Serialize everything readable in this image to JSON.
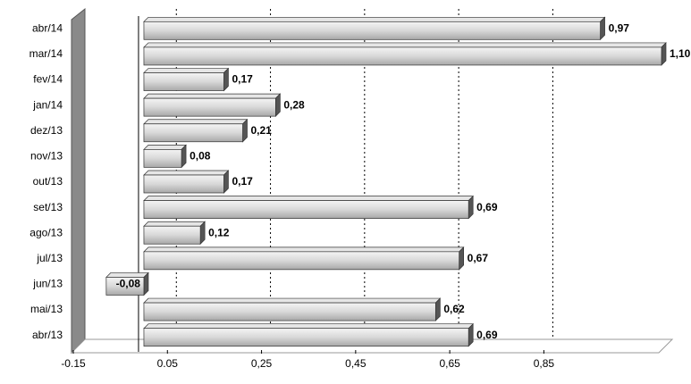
{
  "chart_data": {
    "type": "bar",
    "orientation": "horizontal",
    "categories": [
      "abr/14",
      "mar/14",
      "fev/14",
      "jan/14",
      "dez/13",
      "nov/13",
      "out/13",
      "set/13",
      "ago/13",
      "jul/13",
      "jun/13",
      "mai/13",
      "abr/13"
    ],
    "values": [
      0.97,
      1.1,
      0.17,
      0.28,
      0.21,
      0.08,
      0.17,
      0.69,
      0.12,
      0.67,
      -0.08,
      0.62,
      0.69
    ],
    "value_labels": [
      "0,97",
      "1,10",
      "0,17",
      "0,28",
      "0,21",
      "0,08",
      "0,17",
      "0,69",
      "0,12",
      "0,67",
      "-0,08",
      "0,62",
      "0,69"
    ],
    "color": "#c8c8c8",
    "xlim": [
      -0.15,
      1.1
    ],
    "xticks": [
      -0.15,
      0.05,
      {
        "value": 0.25,
        "label": "0,25"
      },
      {
        "value": 0.45,
        "label": "0,45"
      },
      {
        "value": 0.65,
        "label": "0,65"
      },
      {
        "value": 0.85,
        "label": "0,85"
      }
    ],
    "grid": true
  }
}
